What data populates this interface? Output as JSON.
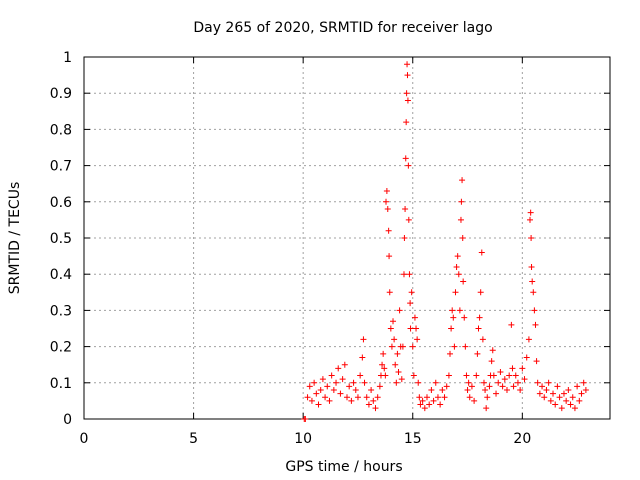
{
  "chart_data": {
    "type": "scatter",
    "title": "Day 265 of 2020, SRMTID for receiver lago",
    "xlabel": "GPS time / hours",
    "ylabel": "SRMTID / TECUs",
    "xlim": [
      0,
      24
    ],
    "ylim": [
      0,
      1
    ],
    "xticks": [
      0,
      5,
      10,
      15,
      20
    ],
    "xtick_labels": [
      "0",
      "5",
      "10",
      "15",
      "20"
    ],
    "yticks": [
      0,
      0.1,
      0.2,
      0.3,
      0.4,
      0.5,
      0.6,
      0.7,
      0.8,
      0.9,
      1
    ],
    "ytick_labels": [
      "0",
      "0.1",
      "0.2",
      "0.3",
      "0.4",
      "0.5",
      "0.6",
      "0.7",
      "0.8",
      "0.9",
      "1"
    ],
    "grid": true,
    "marker": "+",
    "series": [
      {
        "name": "SRMTID",
        "color": "#ff0000",
        "points": [
          [
            10.05,
            0.0
          ],
          [
            10.1,
            0.0
          ],
          [
            10.2,
            0.06
          ],
          [
            10.3,
            0.09
          ],
          [
            10.4,
            0.05
          ],
          [
            10.5,
            0.1
          ],
          [
            10.6,
            0.07
          ],
          [
            10.7,
            0.04
          ],
          [
            10.8,
            0.08
          ],
          [
            10.9,
            0.11
          ],
          [
            11.0,
            0.06
          ],
          [
            11.1,
            0.09
          ],
          [
            11.2,
            0.05
          ],
          [
            11.3,
            0.12
          ],
          [
            11.4,
            0.08
          ],
          [
            11.5,
            0.1
          ],
          [
            11.6,
            0.14
          ],
          [
            11.7,
            0.07
          ],
          [
            11.8,
            0.11
          ],
          [
            11.9,
            0.15
          ],
          [
            12.0,
            0.06
          ],
          [
            12.1,
            0.09
          ],
          [
            12.2,
            0.05
          ],
          [
            12.3,
            0.1
          ],
          [
            12.4,
            0.08
          ],
          [
            12.5,
            0.06
          ],
          [
            12.6,
            0.12
          ],
          [
            12.7,
            0.17
          ],
          [
            12.75,
            0.22
          ],
          [
            12.8,
            0.1
          ],
          [
            12.9,
            0.06
          ],
          [
            13.0,
            0.04
          ],
          [
            13.1,
            0.08
          ],
          [
            13.2,
            0.05
          ],
          [
            13.3,
            0.03
          ],
          [
            13.4,
            0.06
          ],
          [
            13.5,
            0.09
          ],
          [
            13.55,
            0.12
          ],
          [
            13.6,
            0.15
          ],
          [
            13.65,
            0.18
          ],
          [
            13.7,
            0.14
          ],
          [
            13.75,
            0.12
          ],
          [
            13.78,
            0.6
          ],
          [
            13.82,
            0.63
          ],
          [
            13.86,
            0.58
          ],
          [
            13.9,
            0.52
          ],
          [
            13.92,
            0.45
          ],
          [
            13.95,
            0.35
          ],
          [
            14.0,
            0.25
          ],
          [
            14.05,
            0.2
          ],
          [
            14.1,
            0.27
          ],
          [
            14.15,
            0.22
          ],
          [
            14.2,
            0.15
          ],
          [
            14.25,
            0.1
          ],
          [
            14.3,
            0.18
          ],
          [
            14.35,
            0.13
          ],
          [
            14.4,
            0.3
          ],
          [
            14.45,
            0.2
          ],
          [
            14.5,
            0.11
          ],
          [
            14.55,
            0.2
          ],
          [
            14.6,
            0.4
          ],
          [
            14.62,
            0.5
          ],
          [
            14.65,
            0.58
          ],
          [
            14.68,
            0.72
          ],
          [
            14.7,
            0.82
          ],
          [
            14.72,
            0.9
          ],
          [
            14.74,
            0.98
          ],
          [
            14.76,
            0.95
          ],
          [
            14.78,
            0.88
          ],
          [
            14.8,
            0.7
          ],
          [
            14.82,
            0.55
          ],
          [
            14.85,
            0.4
          ],
          [
            14.88,
            0.32
          ],
          [
            14.9,
            0.25
          ],
          [
            14.95,
            0.35
          ],
          [
            15.0,
            0.2
          ],
          [
            15.05,
            0.12
          ],
          [
            15.1,
            0.28
          ],
          [
            15.15,
            0.25
          ],
          [
            15.2,
            0.22
          ],
          [
            15.25,
            0.1
          ],
          [
            15.3,
            0.06
          ],
          [
            15.35,
            0.04
          ],
          [
            15.45,
            0.05
          ],
          [
            15.55,
            0.03
          ],
          [
            15.65,
            0.06
          ],
          [
            15.75,
            0.04
          ],
          [
            15.85,
            0.08
          ],
          [
            15.95,
            0.05
          ],
          [
            16.05,
            0.1
          ],
          [
            16.15,
            0.06
          ],
          [
            16.25,
            0.04
          ],
          [
            16.35,
            0.08
          ],
          [
            16.45,
            0.06
          ],
          [
            16.55,
            0.09
          ],
          [
            16.65,
            0.12
          ],
          [
            16.7,
            0.18
          ],
          [
            16.75,
            0.25
          ],
          [
            16.8,
            0.3
          ],
          [
            16.85,
            0.28
          ],
          [
            16.9,
            0.2
          ],
          [
            16.95,
            0.35
          ],
          [
            17.0,
            0.42
          ],
          [
            17.05,
            0.45
          ],
          [
            17.1,
            0.4
          ],
          [
            17.15,
            0.3
          ],
          [
            17.2,
            0.55
          ],
          [
            17.22,
            0.6
          ],
          [
            17.25,
            0.66
          ],
          [
            17.28,
            0.5
          ],
          [
            17.3,
            0.38
          ],
          [
            17.35,
            0.28
          ],
          [
            17.4,
            0.2
          ],
          [
            17.45,
            0.12
          ],
          [
            17.5,
            0.08
          ],
          [
            17.55,
            0.1
          ],
          [
            17.6,
            0.06
          ],
          [
            17.7,
            0.09
          ],
          [
            17.8,
            0.05
          ],
          [
            17.9,
            0.12
          ],
          [
            17.95,
            0.18
          ],
          [
            18.0,
            0.25
          ],
          [
            18.05,
            0.28
          ],
          [
            18.1,
            0.35
          ],
          [
            18.15,
            0.46
          ],
          [
            18.2,
            0.22
          ],
          [
            18.25,
            0.1
          ],
          [
            18.3,
            0.08
          ],
          [
            18.35,
            0.03
          ],
          [
            18.4,
            0.06
          ],
          [
            18.5,
            0.09
          ],
          [
            18.55,
            0.12
          ],
          [
            18.6,
            0.16
          ],
          [
            18.65,
            0.19
          ],
          [
            18.7,
            0.12
          ],
          [
            18.8,
            0.07
          ],
          [
            18.9,
            0.1
          ],
          [
            19.0,
            0.13
          ],
          [
            19.1,
            0.09
          ],
          [
            19.2,
            0.11
          ],
          [
            19.3,
            0.08
          ],
          [
            19.4,
            0.12
          ],
          [
            19.5,
            0.26
          ],
          [
            19.55,
            0.14
          ],
          [
            19.6,
            0.09
          ],
          [
            19.7,
            0.12
          ],
          [
            19.8,
            0.1
          ],
          [
            19.9,
            0.08
          ],
          [
            20.0,
            0.14
          ],
          [
            20.1,
            0.11
          ],
          [
            20.2,
            0.17
          ],
          [
            20.3,
            0.22
          ],
          [
            20.35,
            0.55
          ],
          [
            20.38,
            0.57
          ],
          [
            20.4,
            0.5
          ],
          [
            20.42,
            0.42
          ],
          [
            20.45,
            0.38
          ],
          [
            20.5,
            0.35
          ],
          [
            20.55,
            0.3
          ],
          [
            20.6,
            0.26
          ],
          [
            20.65,
            0.16
          ],
          [
            20.7,
            0.1
          ],
          [
            20.8,
            0.07
          ],
          [
            20.9,
            0.09
          ],
          [
            21.0,
            0.06
          ],
          [
            21.1,
            0.08
          ],
          [
            21.2,
            0.1
          ],
          [
            21.3,
            0.05
          ],
          [
            21.4,
            0.07
          ],
          [
            21.5,
            0.04
          ],
          [
            21.6,
            0.09
          ],
          [
            21.7,
            0.06
          ],
          [
            21.8,
            0.03
          ],
          [
            21.9,
            0.07
          ],
          [
            22.0,
            0.05
          ],
          [
            22.1,
            0.08
          ],
          [
            22.2,
            0.04
          ],
          [
            22.3,
            0.06
          ],
          [
            22.4,
            0.03
          ],
          [
            22.5,
            0.09
          ],
          [
            22.6,
            0.05
          ],
          [
            22.7,
            0.07
          ],
          [
            22.8,
            0.1
          ],
          [
            22.9,
            0.08
          ]
        ]
      }
    ]
  }
}
